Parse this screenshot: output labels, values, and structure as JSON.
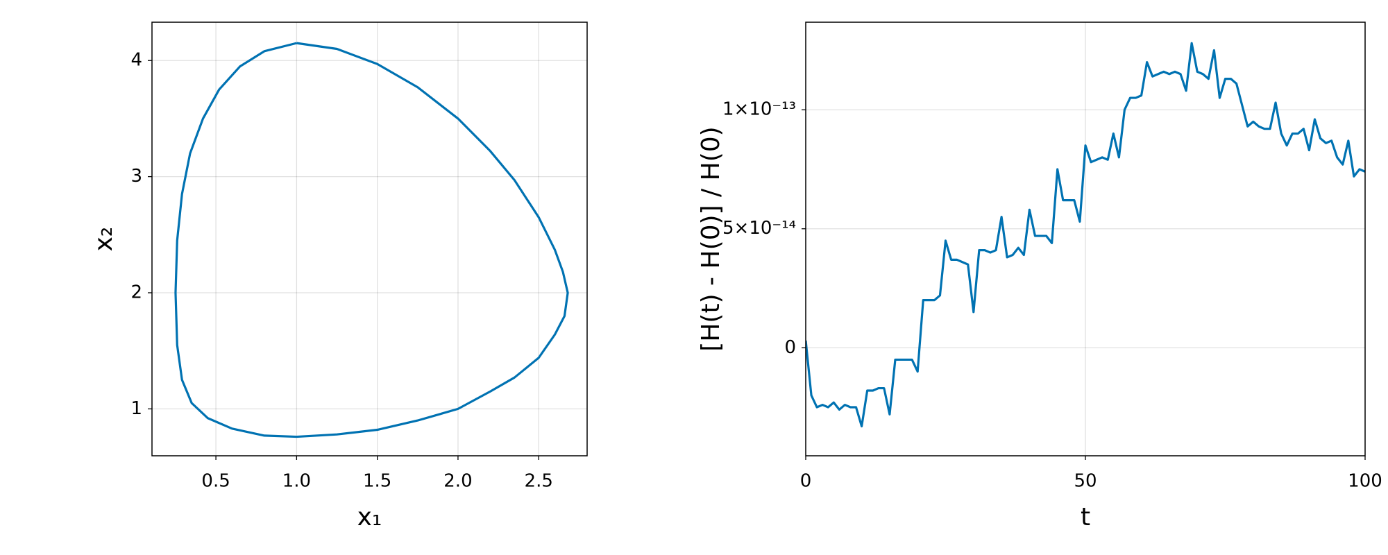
{
  "chart_data": [
    {
      "type": "line",
      "xlabel": "x₁",
      "ylabel": "x₂",
      "color": "#0072b2",
      "grid": true,
      "xlim": [
        0.104,
        2.8
      ],
      "ylim": [
        0.596,
        4.33
      ],
      "xticks": [
        0.5,
        {
          "value": 1,
          "label": "1.0"
        },
        1.5,
        {
          "value": 2,
          "label": "2.0"
        },
        2.5
      ],
      "yticks": [
        1,
        2,
        3,
        4
      ],
      "x": [
        1.0,
        1.25,
        1.5,
        1.75,
        2.0,
        2.2,
        2.35,
        2.5,
        2.6,
        2.65,
        2.68,
        2.66,
        2.6,
        2.5,
        2.35,
        2.2,
        2.0,
        1.75,
        1.5,
        1.25,
        1.0,
        0.8,
        0.6,
        0.45,
        0.35,
        0.29,
        0.26,
        0.25,
        0.26,
        0.29,
        0.34,
        0.42,
        0.52,
        0.65,
        0.8,
        1.0
      ],
      "values": [
        4.15,
        4.1,
        3.97,
        3.77,
        3.5,
        3.22,
        2.97,
        2.65,
        2.37,
        2.18,
        2.0,
        1.8,
        1.64,
        1.44,
        1.27,
        1.15,
        1.0,
        0.9,
        0.82,
        0.78,
        0.76,
        0.77,
        0.83,
        0.92,
        1.05,
        1.25,
        1.55,
        2.0,
        2.45,
        2.85,
        3.2,
        3.5,
        3.75,
        3.95,
        4.08,
        4.15
      ]
    },
    {
      "type": "line",
      "xlabel": "t",
      "ylabel": "[H(t) - H(0)] / H(0)",
      "color": "#0072b2",
      "grid": true,
      "xlim": [
        0,
        100
      ],
      "ylim": [
        -4.54e-14,
        1.368e-13
      ],
      "xticks": [
        0,
        50,
        100
      ],
      "yticks": [
        0,
        {
          "value": 5e-14,
          "label": "5×10⁻¹⁴"
        },
        {
          "value": 1e-13,
          "label": "1×10⁻¹³"
        }
      ],
      "x": [
        0,
        1,
        2,
        3,
        4,
        5,
        6,
        7,
        8,
        9,
        10,
        11,
        12,
        13,
        14,
        15,
        16,
        17,
        18,
        19,
        20,
        21,
        22,
        23,
        24,
        25,
        26,
        27,
        28,
        29,
        30,
        31,
        32,
        33,
        34,
        35,
        36,
        37,
        38,
        39,
        40,
        41,
        42,
        43,
        44,
        45,
        46,
        47,
        48,
        49,
        50,
        51,
        52,
        53,
        54,
        55,
        56,
        57,
        58,
        59,
        60,
        61,
        62,
        63,
        64,
        65,
        66,
        67,
        68,
        69,
        70,
        71,
        72,
        73,
        74,
        75,
        76,
        77,
        78,
        79,
        80,
        81,
        82,
        83,
        84,
        85,
        86,
        87,
        88,
        89,
        90,
        91,
        92,
        93,
        94,
        95,
        96,
        97,
        98,
        99,
        100
      ],
      "values": [
        3e-15,
        -2e-14,
        -2.5e-14,
        -2.4e-14,
        -2.5e-14,
        -2.3e-14,
        -2.6e-14,
        -2.4e-14,
        -2.5e-14,
        -2.5e-14,
        -3.3e-14,
        -1.8e-14,
        -1.8e-14,
        -1.7e-14,
        -1.7e-14,
        -2.8e-14,
        -5e-15,
        -5e-15,
        -5e-15,
        -5e-15,
        -1e-14,
        2e-14,
        2e-14,
        2e-14,
        2.2e-14,
        4.5e-14,
        3.7e-14,
        3.7e-14,
        3.6e-14,
        3.5e-14,
        1.5e-14,
        4.1e-14,
        4.1e-14,
        4e-14,
        4.1e-14,
        5.5e-14,
        3.8e-14,
        3.9e-14,
        4.2e-14,
        3.9e-14,
        5.8e-14,
        4.7e-14,
        4.7e-14,
        4.7e-14,
        4.4e-14,
        7.5e-14,
        6.2e-14,
        6.2e-14,
        6.2e-14,
        5.3e-14,
        8.5e-14,
        7.8e-14,
        7.9e-14,
        8e-14,
        7.9e-14,
        9e-14,
        8e-14,
        1e-13,
        1.05e-13,
        1.05e-13,
        1.06e-13,
        1.2e-13,
        1.14e-13,
        1.15e-13,
        1.16e-13,
        1.15e-13,
        1.16e-13,
        1.15e-13,
        1.08e-13,
        1.28e-13,
        1.16e-13,
        1.15e-13,
        1.13e-13,
        1.25e-13,
        1.05e-13,
        1.13e-13,
        1.13e-13,
        1.11e-13,
        1.02e-13,
        9.3e-14,
        9.5e-14,
        9.3e-14,
        9.2e-14,
        9.2e-14,
        1.03e-13,
        9e-14,
        8.5e-14,
        9e-14,
        9e-14,
        9.2e-14,
        8.3e-14,
        9.6e-14,
        8.8e-14,
        8.6e-14,
        8.7e-14,
        8e-14,
        7.7e-14,
        8.7e-14,
        7.2e-14,
        7.5e-14,
        7.4e-14
      ]
    }
  ]
}
